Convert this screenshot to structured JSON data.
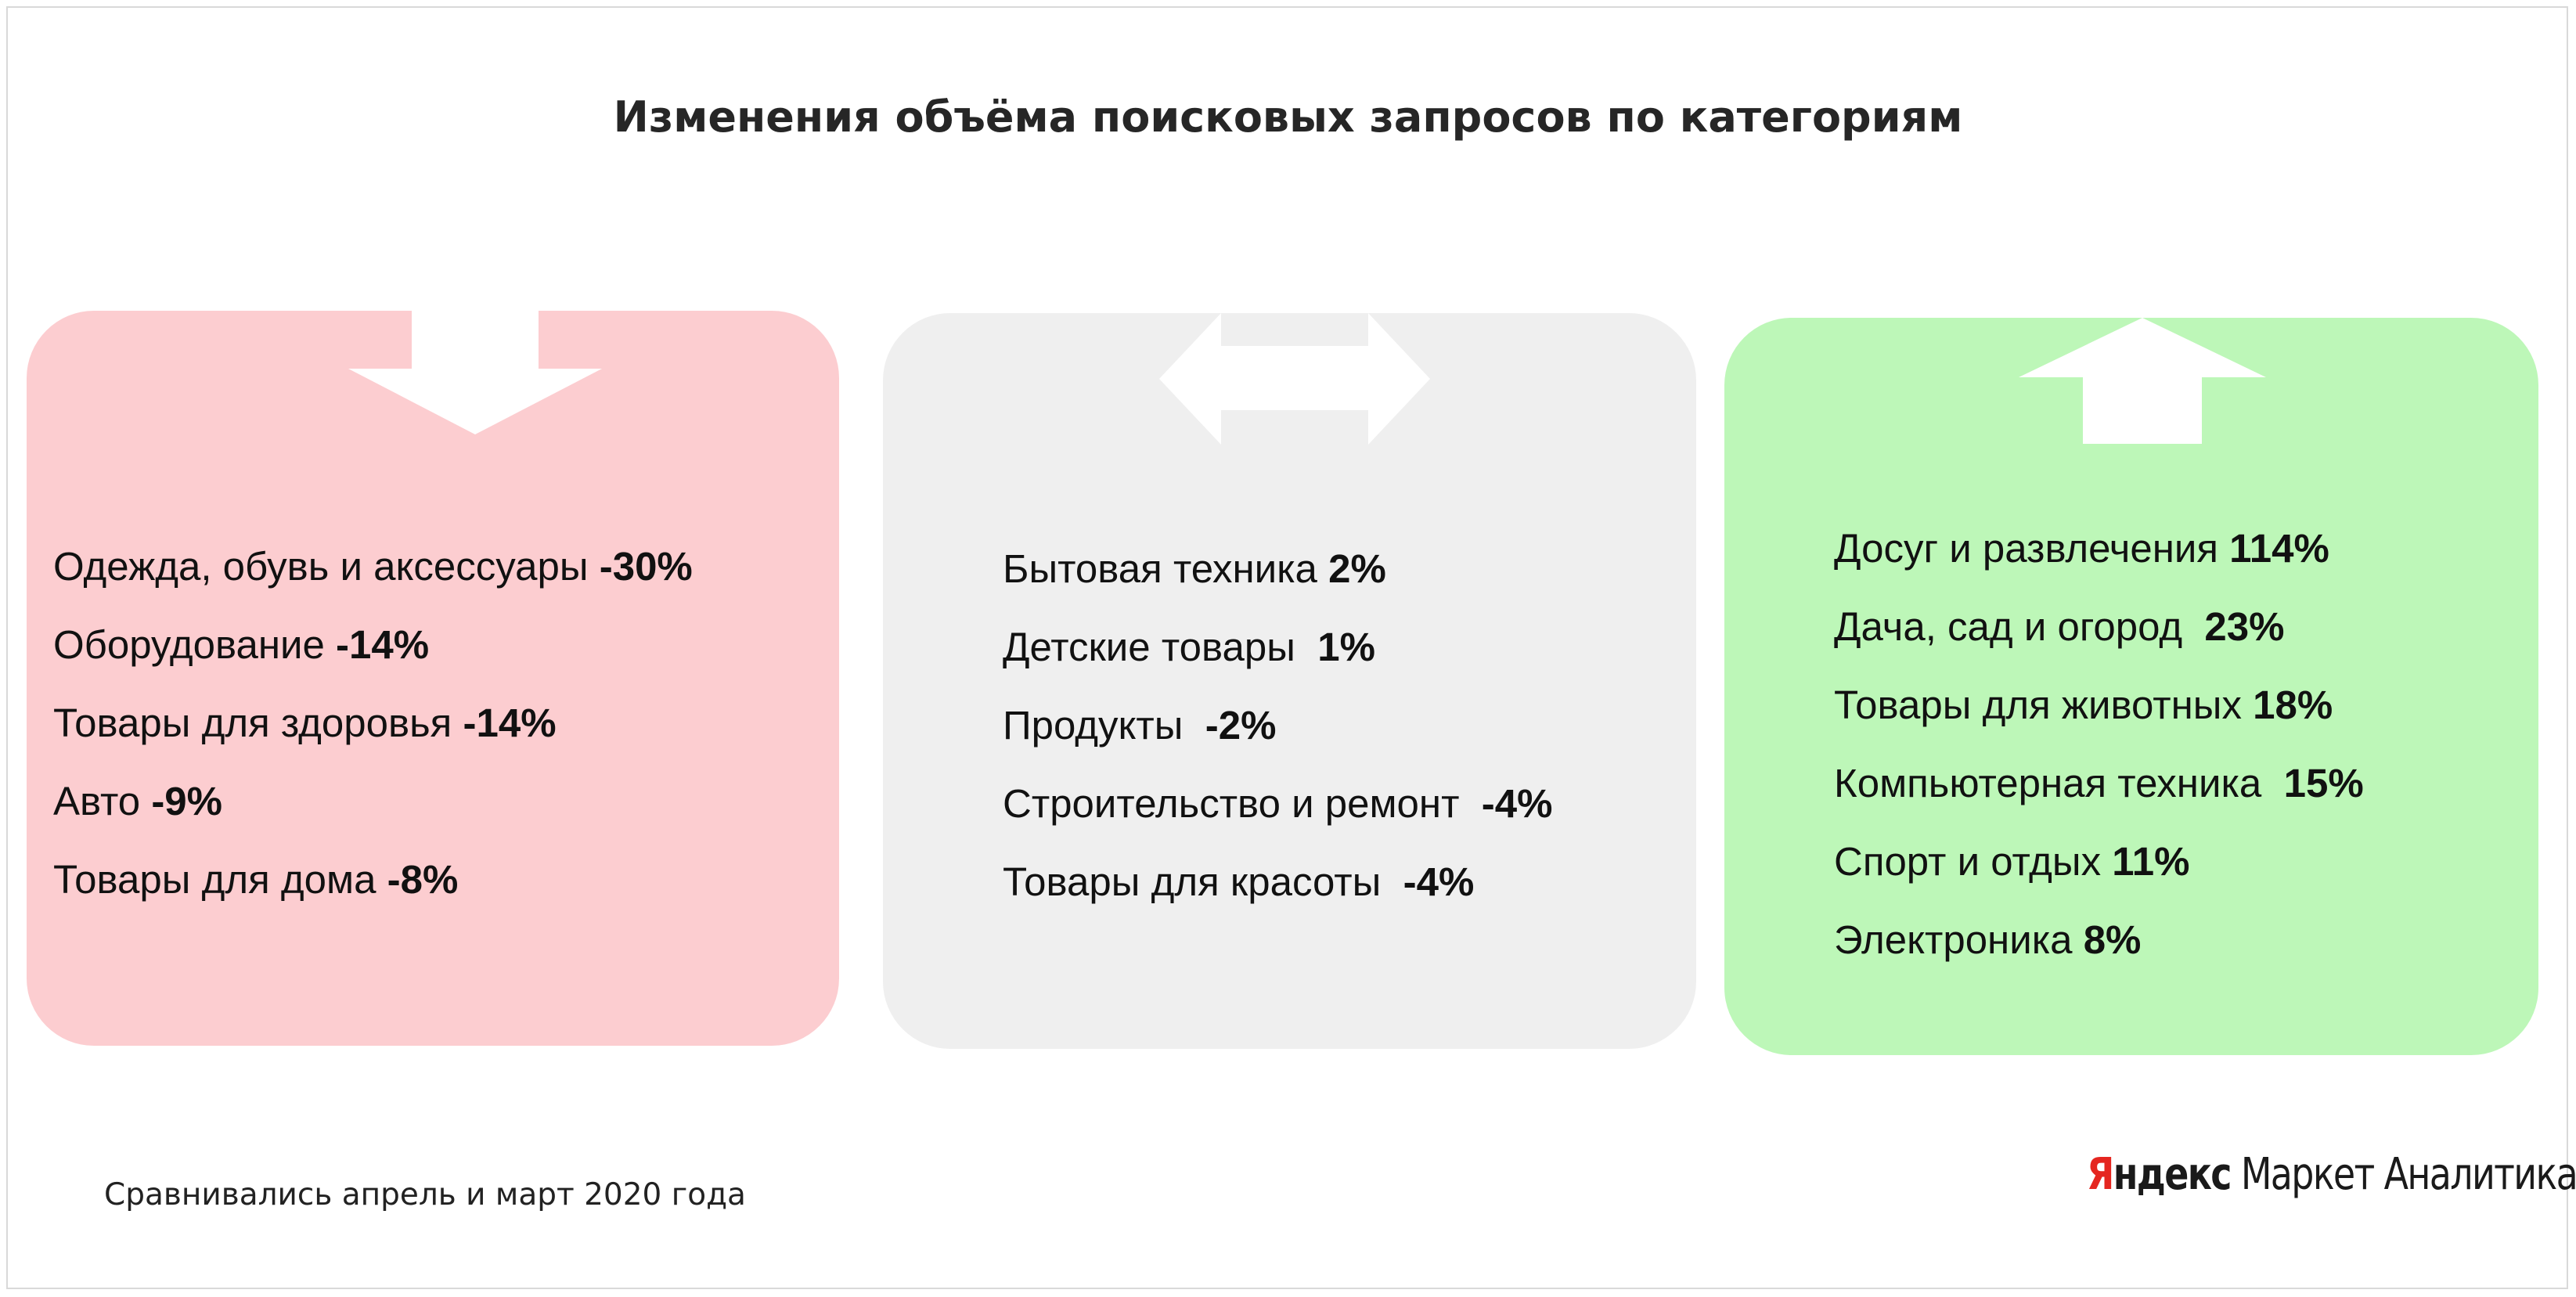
{
  "title": "Изменения объёма поисковых запросов по категориям",
  "panels": [
    {
      "id": "decrease",
      "color": "#fccdd0",
      "arrow": "down-arrow-icon",
      "items": [
        {
          "label": "Одежда, обувь и аксессуары ",
          "value": "-30%"
        },
        {
          "label": "Оборудование ",
          "value": "-14%"
        },
        {
          "label": "Товары для здоровья ",
          "value": "-14%"
        },
        {
          "label": "Авто ",
          "value": "-9%"
        },
        {
          "label": "Товары для дома ",
          "value": "-8%"
        }
      ]
    },
    {
      "id": "neutral",
      "color": "#efefef",
      "arrow": "left-right-arrow-icon",
      "items": [
        {
          "label": "Бытовая техника ",
          "value": "2%"
        },
        {
          "label": "Детские товары  ",
          "value": "1%"
        },
        {
          "label": "Продукты  ",
          "value": "-2%"
        },
        {
          "label": "Строительство и ремонт  ",
          "value": "-4%"
        },
        {
          "label": "Товары для красоты  ",
          "value": "-4%"
        }
      ]
    },
    {
      "id": "increase",
      "color": "#bdf7b8",
      "arrow": "up-arrow-icon",
      "items": [
        {
          "label": "Досуг и развлечения ",
          "value": "114%"
        },
        {
          "label": "Дача, сад и огород  ",
          "value": "23%"
        },
        {
          "label": "Товары для животных ",
          "value": "18%"
        },
        {
          "label": "Компьютерная техника  ",
          "value": "15%"
        },
        {
          "label": "Спорт и отдых ",
          "value": "11%"
        },
        {
          "label": "Электроника ",
          "value": "8%"
        }
      ]
    }
  ],
  "footnote": "Сравнивались апрель и март 2020 года",
  "brand": {
    "first": "Я",
    "rest": "ндекс",
    "suffix": " Маркет Аналитика",
    "accent": "#e52620"
  }
}
